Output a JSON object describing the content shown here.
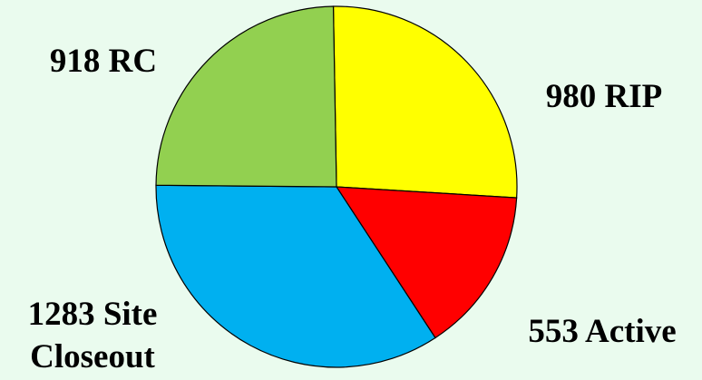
{
  "chart_data": {
    "type": "pie",
    "title": "",
    "start_angle_deg": -91,
    "direction": "clockwise",
    "slices": [
      {
        "label_lines": [
          "980 RIP"
        ],
        "value": 980,
        "color": "#ffff00"
      },
      {
        "label_lines": [
          "553 Active"
        ],
        "value": 553,
        "color": "#ff0000"
      },
      {
        "label_lines": [
          "1283 Site",
          "Closeout"
        ],
        "value": 1283,
        "color": "#00b0f0"
      },
      {
        "label_lines": [
          "918 RC"
        ],
        "value": 918,
        "color": "#92d050"
      }
    ]
  }
}
